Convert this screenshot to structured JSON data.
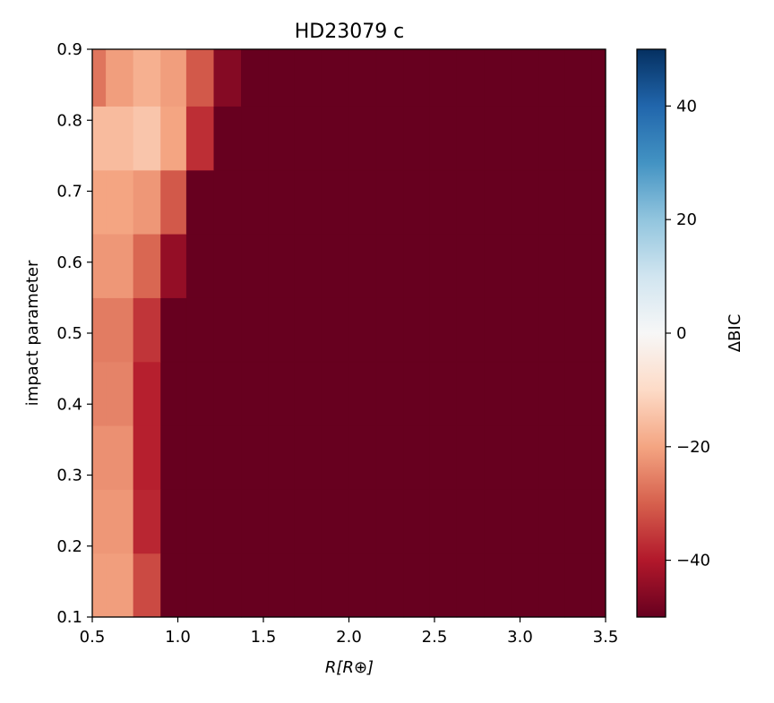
{
  "chart_data": {
    "type": "heatmap",
    "title": "HD23079 c",
    "xlabel": "R[R⊕]",
    "ylabel": "impact parameter",
    "colorbar_label": "ΔBIC",
    "colormap": "RdBu",
    "color_limits": [
      -50,
      50
    ],
    "colorbar_ticks": [
      -40,
      -20,
      0,
      20,
      40
    ],
    "colorbar_tick_labels": [
      "−40",
      "−20",
      "0",
      "20",
      "40"
    ],
    "xlim": [
      0.5,
      3.5
    ],
    "ylim": [
      0.1,
      0.9
    ],
    "x_ticks": [
      0.5,
      1.0,
      1.5,
      2.0,
      2.5,
      3.0,
      3.5
    ],
    "x_tick_labels": [
      "0.5",
      "1.0",
      "1.5",
      "2.0",
      "2.5",
      "3.0",
      "3.5"
    ],
    "y_ticks": [
      0.1,
      0.2,
      0.3,
      0.4,
      0.5,
      0.6,
      0.7,
      0.8,
      0.9
    ],
    "y_tick_labels": [
      "0.1",
      "0.2",
      "0.3",
      "0.4",
      "0.5",
      "0.6",
      "0.7",
      "0.8",
      "0.9"
    ],
    "x_edges": [
      0.5,
      0.58,
      0.74,
      0.9,
      1.05,
      1.21,
      1.37,
      1.53,
      1.68,
      1.84,
      2.0,
      2.16,
      2.32,
      2.47,
      2.63,
      2.79,
      2.95,
      3.11,
      3.26,
      3.42,
      3.5
    ],
    "y_edges": [
      0.1,
      0.19,
      0.28,
      0.37,
      0.46,
      0.55,
      0.64,
      0.73,
      0.82,
      0.9
    ],
    "values": [
      [
        -21,
        -21,
        -33,
        -50,
        -50,
        -50,
        -50,
        -50,
        -50,
        -50,
        -50,
        -50,
        -50,
        -50,
        -50,
        -50,
        -50,
        -50,
        -50,
        -50
      ],
      [
        -22,
        -22,
        -38,
        -50,
        -50,
        -50,
        -50,
        -50,
        -50,
        -50,
        -50,
        -50,
        -50,
        -50,
        -50,
        -50,
        -50,
        -50,
        -50,
        -50
      ],
      [
        -23,
        -23,
        -39,
        -50,
        -50,
        -50,
        -50,
        -50,
        -50,
        -50,
        -50,
        -50,
        -50,
        -50,
        -50,
        -50,
        -50,
        -50,
        -50,
        -50
      ],
      [
        -25,
        -25,
        -39,
        -50,
        -50,
        -50,
        -50,
        -50,
        -50,
        -50,
        -50,
        -50,
        -50,
        -50,
        -50,
        -50,
        -50,
        -50,
        -50,
        -50
      ],
      [
        -26,
        -26,
        -36,
        -50,
        -50,
        -50,
        -50,
        -50,
        -50,
        -50,
        -50,
        -50,
        -50,
        -50,
        -50,
        -50,
        -50,
        -50,
        -50,
        -50
      ],
      [
        -22,
        -22,
        -29,
        -44,
        -50,
        -50,
        -50,
        -50,
        -50,
        -50,
        -50,
        -50,
        -50,
        -50,
        -50,
        -50,
        -50,
        -50,
        -50,
        -50
      ],
      [
        -20,
        -20,
        -22,
        -31,
        -50,
        -50,
        -50,
        -50,
        -50,
        -50,
        -50,
        -50,
        -50,
        -50,
        -50,
        -50,
        -50,
        -50,
        -50,
        -50
      ],
      [
        -16,
        -16,
        -14,
        -20,
        -37,
        -50,
        -50,
        -50,
        -50,
        -50,
        -50,
        -50,
        -50,
        -50,
        -50,
        -50,
        -50,
        -50,
        -50,
        -50
      ],
      [
        -27,
        -21,
        -18,
        -21,
        -31,
        -46,
        -50,
        -50,
        -50,
        -50,
        -50,
        -50,
        -50,
        -50,
        -50,
        -50,
        -50,
        -50,
        -50,
        -50
      ]
    ]
  }
}
